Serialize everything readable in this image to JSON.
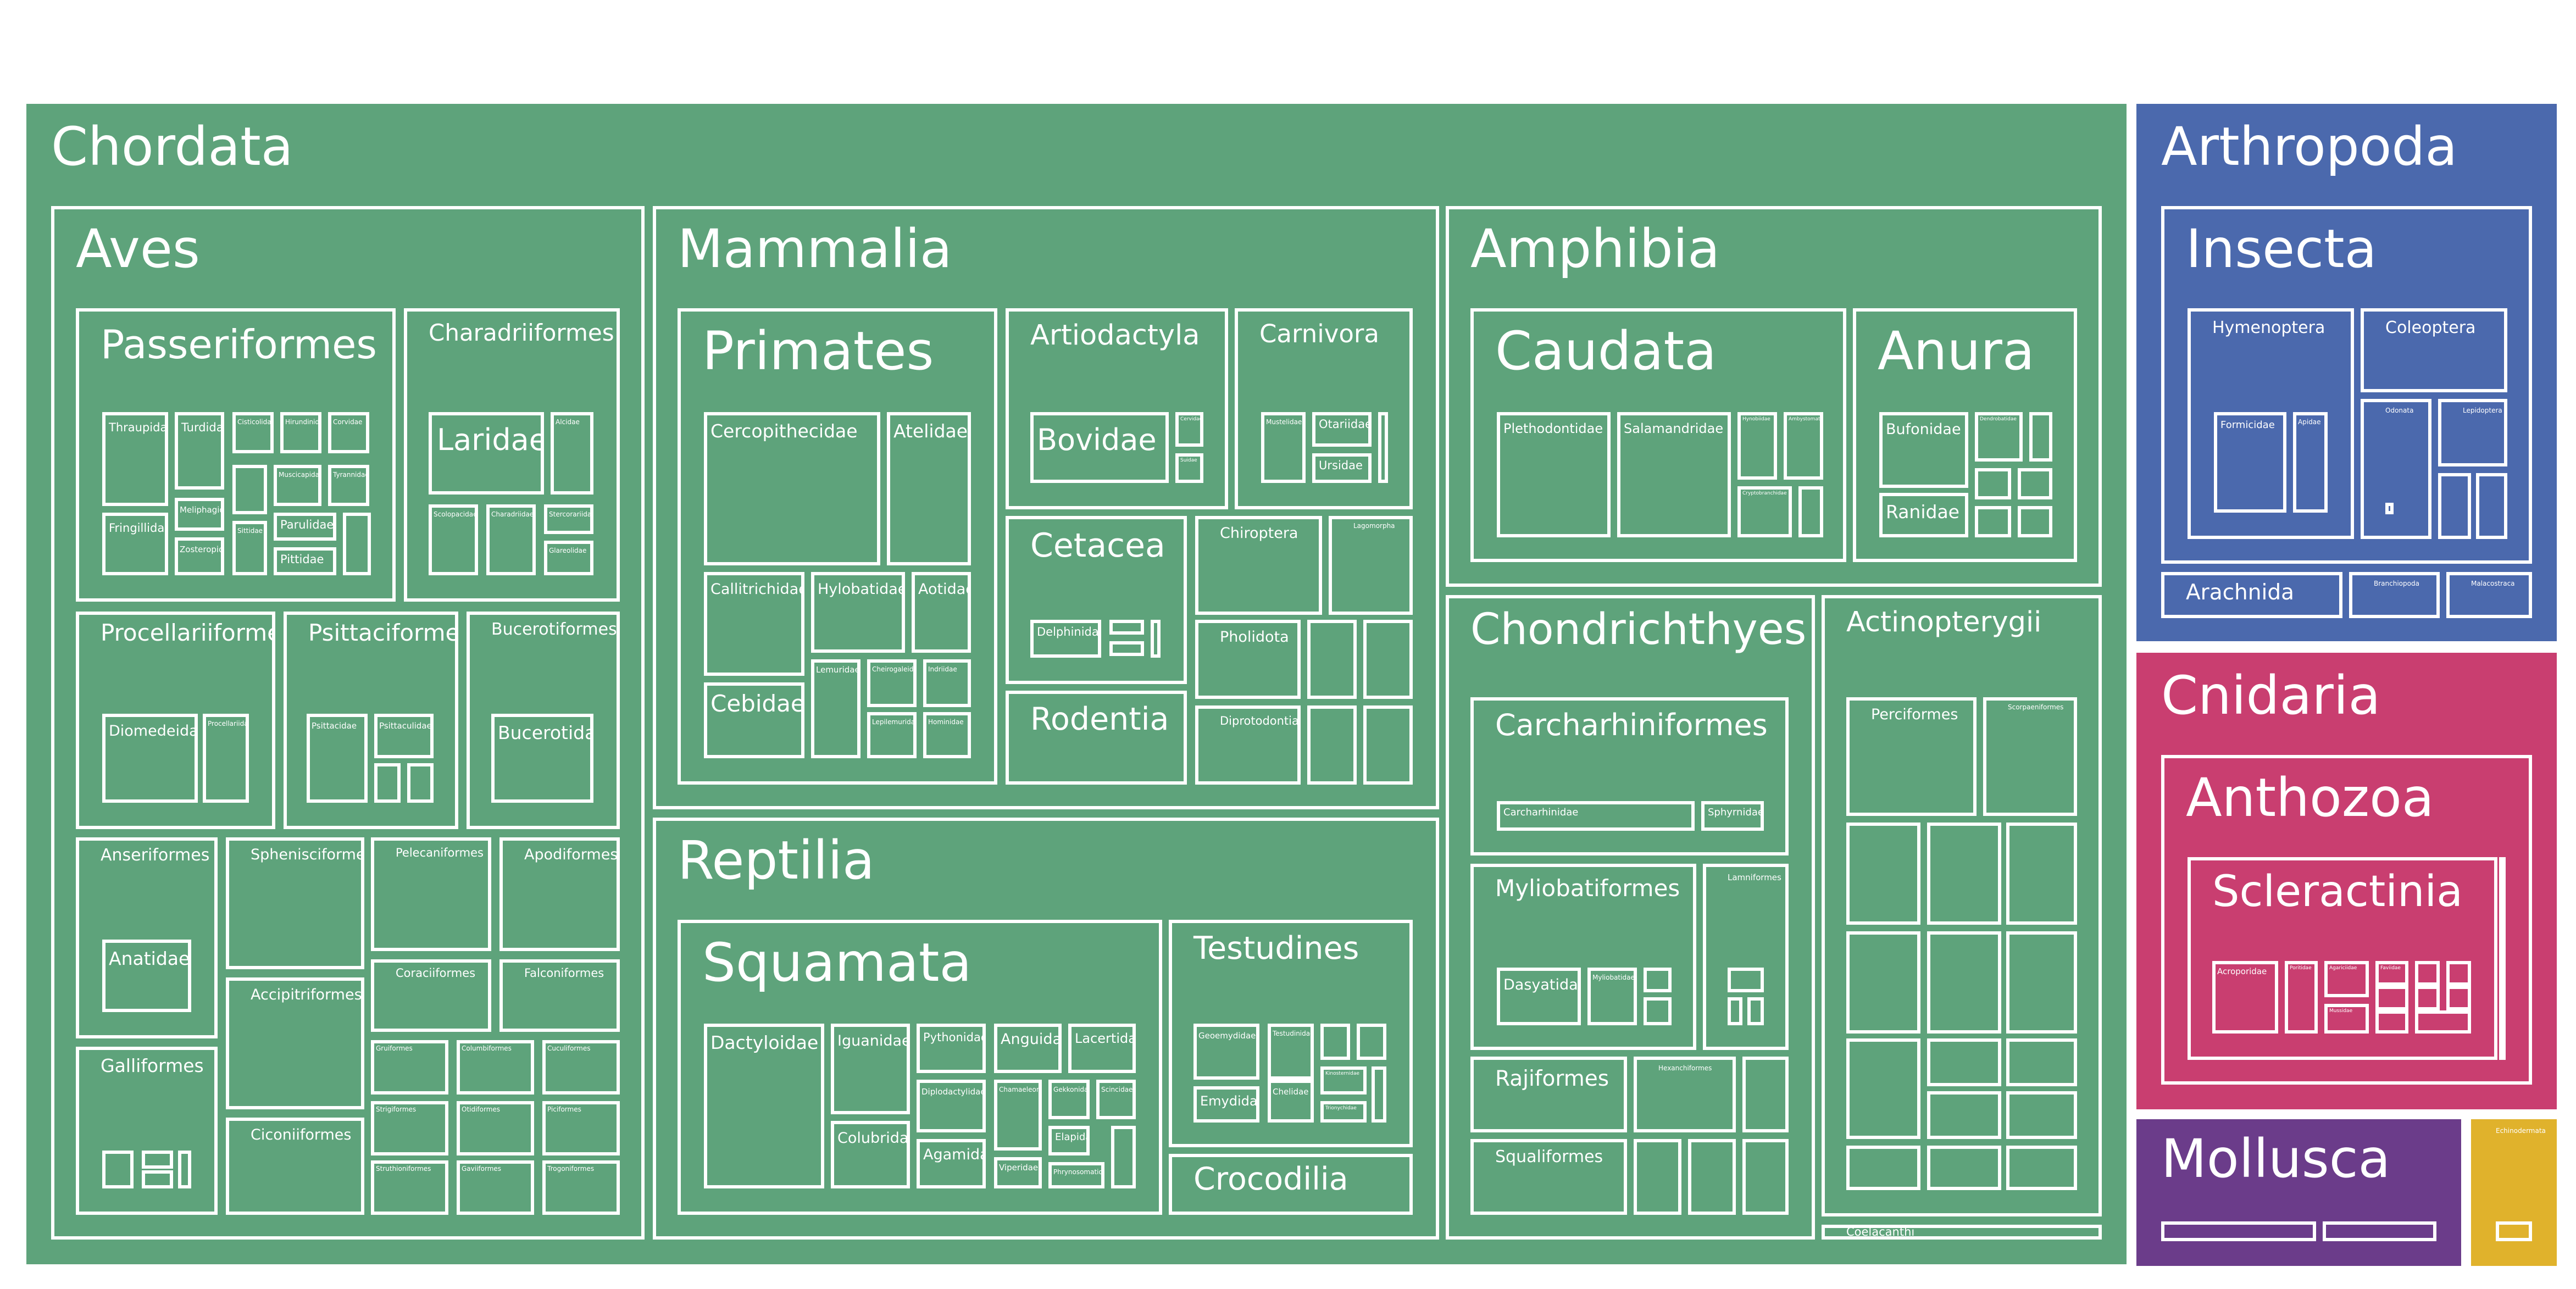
{
  "chart_data": {
    "type": "treemap",
    "title": "",
    "colors": {
      "Chordata": "#5ea37b",
      "Arthropoda": "#4b69ad",
      "Cnidaria": "#c93e70",
      "Mollusca": "#6b3c8a",
      "Other": "#e0b22c"
    },
    "nodes": [
      {
        "id": "chordata",
        "label": "Chordata",
        "level": 0
      },
      {
        "id": "aves",
        "label": "Aves",
        "level": 1
      },
      {
        "id": "passeriformes",
        "label": "Passeriformes",
        "level": 2
      },
      {
        "id": "thraupidae",
        "label": "Thraupidae",
        "level": 3
      },
      {
        "id": "turdidae",
        "label": "Turdidae",
        "level": 3
      },
      {
        "id": "pass_c",
        "label": "Cisticolidae",
        "level": 3
      },
      {
        "id": "pass_d",
        "label": "Hirundinidae",
        "level": 3
      },
      {
        "id": "pass_e",
        "label": "Corvidae",
        "level": 3
      },
      {
        "id": "pass_f",
        "label": "",
        "level": 3
      },
      {
        "id": "pass_g",
        "label": "Muscicapidae",
        "level": 3
      },
      {
        "id": "pass_h",
        "label": "Tyrannidae",
        "level": 3
      },
      {
        "id": "fringillidae",
        "label": "Fringillidae",
        "level": 3
      },
      {
        "id": "meliphagidae",
        "label": "Meliphagidae",
        "level": 3
      },
      {
        "id": "pass_i",
        "label": "Sittidae",
        "level": 3
      },
      {
        "id": "parulidae",
        "label": "Parulidae",
        "level": 3
      },
      {
        "id": "zosteropidae",
        "label": "Zosteropidae",
        "level": 3
      },
      {
        "id": "pittidae",
        "label": "Pittidae",
        "level": 3
      },
      {
        "id": "pass_j",
        "label": "",
        "level": 3
      },
      {
        "id": "charadriiformes",
        "label": "Charadriiformes",
        "level": 2
      },
      {
        "id": "laridae",
        "label": "Laridae",
        "level": 3
      },
      {
        "id": "scolopacidae",
        "label": "Scolopacidae",
        "level": 3
      },
      {
        "id": "charadriidae",
        "label": "Charadriidae",
        "level": 3
      },
      {
        "id": "alcidae",
        "label": "Alcidae",
        "level": 3
      },
      {
        "id": "char_d",
        "label": "Stercorariidae",
        "level": 3
      },
      {
        "id": "glareolidae",
        "label": "Glareolidae",
        "level": 3
      },
      {
        "id": "procellariiformes",
        "label": "Procellariiformes",
        "level": 2
      },
      {
        "id": "diomedeidae",
        "label": "Diomedeidae",
        "level": 3
      },
      {
        "id": "procellariidae",
        "label": "Procellariidae",
        "level": 3
      },
      {
        "id": "psittaciformes",
        "label": "Psittaciformes",
        "level": 2
      },
      {
        "id": "psittacidae",
        "label": "Psittacidae",
        "level": 3
      },
      {
        "id": "psittaculidae",
        "label": "Psittaculidae",
        "level": 3
      },
      {
        "id": "psit_c",
        "label": "",
        "level": 3
      },
      {
        "id": "psit_d",
        "label": "",
        "level": 3
      },
      {
        "id": "bucerotiformes",
        "label": "Bucerotiformes",
        "level": 2
      },
      {
        "id": "bucerotidae",
        "label": "Bucerotidae",
        "level": 3
      },
      {
        "id": "anseriformes",
        "label": "Anseriformes",
        "level": 2
      },
      {
        "id": "anatidae",
        "label": "Anatidae",
        "level": 3
      },
      {
        "id": "galliformes",
        "label": "Galliformes",
        "level": 2
      },
      {
        "id": "gall_a",
        "label": "",
        "level": 3
      },
      {
        "id": "gall_b",
        "label": "",
        "level": 3
      },
      {
        "id": "gall_c",
        "label": "",
        "level": 3
      },
      {
        "id": "gall_d",
        "label": "",
        "level": 3
      },
      {
        "id": "sphenisciformes",
        "label": "Sphenisciformes",
        "level": 2
      },
      {
        "id": "accipitriformes",
        "label": "Accipitriformes",
        "level": 2
      },
      {
        "id": "ciconiiformes",
        "label": "Ciconiiformes",
        "level": 2
      },
      {
        "id": "pelecaniformes",
        "label": "Pelecaniformes",
        "level": 2
      },
      {
        "id": "apodiformes",
        "label": "Apodiformes",
        "level": 2
      },
      {
        "id": "coraciiformes",
        "label": "Coraciiformes",
        "level": 2
      },
      {
        "id": "falconiformes",
        "label": "Falconiformes",
        "level": 2
      },
      {
        "id": "aves_s1",
        "label": "Gruiformes",
        "level": 2
      },
      {
        "id": "aves_s2",
        "label": "Columbiformes",
        "level": 2
      },
      {
        "id": "aves_s3",
        "label": "Cuculiformes",
        "level": 2
      },
      {
        "id": "aves_s4",
        "label": "Strigiformes",
        "level": 2
      },
      {
        "id": "aves_s5",
        "label": "Otidiformes",
        "level": 2
      },
      {
        "id": "aves_s6",
        "label": "Piciformes",
        "level": 2
      },
      {
        "id": "aves_s7",
        "label": "Struthioniformes",
        "level": 2
      },
      {
        "id": "aves_s8",
        "label": "Gaviiformes",
        "level": 2
      },
      {
        "id": "aves_s9",
        "label": "Trogoniformes",
        "level": 2
      },
      {
        "id": "mammalia",
        "label": "Mammalia",
        "level": 1
      },
      {
        "id": "primates",
        "label": "Primates",
        "level": 2
      },
      {
        "id": "cercopithecidae",
        "label": "Cercopithecidae",
        "level": 3
      },
      {
        "id": "atelidae",
        "label": "Atelidae",
        "level": 3
      },
      {
        "id": "callitrichidae",
        "label": "Callitrichidae",
        "level": 3
      },
      {
        "id": "hylobatidae",
        "label": "Hylobatidae",
        "level": 3
      },
      {
        "id": "aotidae",
        "label": "Aotidae",
        "level": 3
      },
      {
        "id": "cebidae",
        "label": "Cebidae",
        "level": 3
      },
      {
        "id": "lemuridae",
        "label": "Lemuridae",
        "level": 3
      },
      {
        "id": "cheirogaleidae",
        "label": "Cheirogaleidae",
        "level": 3
      },
      {
        "id": "indriidae",
        "label": "Indriidae",
        "level": 3
      },
      {
        "id": "lepilemuridae",
        "label": "Lepilemuridae",
        "level": 3
      },
      {
        "id": "hominidae",
        "label": "Hominidae",
        "level": 3
      },
      {
        "id": "artiodactyla",
        "label": "Artiodactyla",
        "level": 2
      },
      {
        "id": "bovidae",
        "label": "Bovidae",
        "level": 3
      },
      {
        "id": "cervidae",
        "label": "Cervidae",
        "level": 3
      },
      {
        "id": "suidae",
        "label": "Suidae",
        "level": 3
      },
      {
        "id": "carnivora",
        "label": "Carnivora",
        "level": 2
      },
      {
        "id": "mustelidae",
        "label": "Mustelidae",
        "level": 3
      },
      {
        "id": "otariidae",
        "label": "Otariidae",
        "level": 3
      },
      {
        "id": "ursidae",
        "label": "Ursidae",
        "level": 3
      },
      {
        "id": "carn_d",
        "label": "",
        "level": 3
      },
      {
        "id": "cetacea",
        "label": "Cetacea",
        "level": 2
      },
      {
        "id": "delphinidae",
        "label": "Delphinidae",
        "level": 3
      },
      {
        "id": "cet_b",
        "label": "",
        "level": 3
      },
      {
        "id": "cet_c",
        "label": "",
        "level": 3
      },
      {
        "id": "cet_d",
        "label": "",
        "level": 3
      },
      {
        "id": "chiroptera",
        "label": "Chiroptera",
        "level": 2
      },
      {
        "id": "lagomorpha",
        "label": "Lagomorpha",
        "level": 2
      },
      {
        "id": "pholidota",
        "label": "Pholidota",
        "level": 2
      },
      {
        "id": "mam_s1",
        "label": "",
        "level": 2
      },
      {
        "id": "mam_s2",
        "label": "",
        "level": 2
      },
      {
        "id": "rodentia",
        "label": "Rodentia",
        "level": 2
      },
      {
        "id": "diprotodontia",
        "label": "Diprotodontia",
        "level": 2
      },
      {
        "id": "mam_s3",
        "label": "",
        "level": 2
      },
      {
        "id": "mam_s4",
        "label": "",
        "level": 2
      },
      {
        "id": "reptilia",
        "label": "Reptilia",
        "level": 1
      },
      {
        "id": "squamata",
        "label": "Squamata",
        "level": 2
      },
      {
        "id": "dactyloidae",
        "label": "Dactyloidae",
        "level": 3
      },
      {
        "id": "iguanidae",
        "label": "Iguanidae",
        "level": 3
      },
      {
        "id": "pythonidae",
        "label": "Pythonidae",
        "level": 3
      },
      {
        "id": "anguidae",
        "label": "Anguidae",
        "level": 3
      },
      {
        "id": "lacertidae",
        "label": "Lacertidae",
        "level": 3
      },
      {
        "id": "colubridae",
        "label": "Colubridae",
        "level": 3
      },
      {
        "id": "diplodactylidae",
        "label": "Diplodactylidae",
        "level": 3
      },
      {
        "id": "squ_a",
        "label": "Chamaeleonidae",
        "level": 3
      },
      {
        "id": "squ_b",
        "label": "Gekkonidae",
        "level": 3
      },
      {
        "id": "squ_c",
        "label": "Scincidae",
        "level": 3
      },
      {
        "id": "agamidae",
        "label": "Agamidae",
        "level": 3
      },
      {
        "id": "elapidae",
        "label": "Elapidae",
        "level": 3
      },
      {
        "id": "viperidae",
        "label": "Viperidae",
        "level": 3
      },
      {
        "id": "squ_d",
        "label": "Phrynosomatidae",
        "level": 3
      },
      {
        "id": "squ_e",
        "label": "",
        "level": 3
      },
      {
        "id": "testudines",
        "label": "Testudines",
        "level": 2
      },
      {
        "id": "geoemydidae",
        "label": "Geoemydidae",
        "level": 3
      },
      {
        "id": "testudinidae",
        "label": "Testudinidae",
        "level": 3
      },
      {
        "id": "emydidae",
        "label": "Emydidae",
        "level": 3
      },
      {
        "id": "chelidae",
        "label": "Chelidae",
        "level": 3
      },
      {
        "id": "tes_a",
        "label": "",
        "level": 3
      },
      {
        "id": "tes_b",
        "label": "",
        "level": 3
      },
      {
        "id": "tes_c",
        "label": "Kinosternidae",
        "level": 3
      },
      {
        "id": "tes_d",
        "label": "Trionychidae",
        "level": 3
      },
      {
        "id": "tes_e",
        "label": "",
        "level": 3
      },
      {
        "id": "crocodilia",
        "label": "Crocodilia",
        "level": 2
      },
      {
        "id": "amphibia",
        "label": "Amphibia",
        "level": 1
      },
      {
        "id": "caudata",
        "label": "Caudata",
        "level": 2
      },
      {
        "id": "plethodontidae",
        "label": "Plethodontidae",
        "level": 3
      },
      {
        "id": "salamandridae",
        "label": "Salamandridae",
        "level": 3
      },
      {
        "id": "cau_a",
        "label": "Hynobiidae",
        "level": 3
      },
      {
        "id": "cau_b",
        "label": "Ambystomatidae",
        "level": 3
      },
      {
        "id": "cau_c",
        "label": "Cryptobranchidae",
        "level": 3
      },
      {
        "id": "cau_d",
        "label": "",
        "level": 3
      },
      {
        "id": "anura",
        "label": "Anura",
        "level": 2
      },
      {
        "id": "bufonidae",
        "label": "Bufonidae",
        "level": 3
      },
      {
        "id": "ranidae",
        "label": "Ranidae",
        "level": 3
      },
      {
        "id": "anu_a",
        "label": "Dendrobatidae",
        "level": 3
      },
      {
        "id": "anu_b",
        "label": "",
        "level": 3
      },
      {
        "id": "anu_c",
        "label": "",
        "level": 3
      },
      {
        "id": "anu_d",
        "label": "",
        "level": 3
      },
      {
        "id": "anu_e",
        "label": "",
        "level": 3
      },
      {
        "id": "anu_f",
        "label": "",
        "level": 3
      },
      {
        "id": "chondrichthyes",
        "label": "Chondrichthyes",
        "level": 1
      },
      {
        "id": "carcharhiniformes",
        "label": "Carcharhiniformes",
        "level": 2
      },
      {
        "id": "carcharhinidae",
        "label": "Carcharhinidae",
        "level": 3
      },
      {
        "id": "sphyrnidae",
        "label": "Sphyrnidae",
        "level": 3
      },
      {
        "id": "myliobatiformes",
        "label": "Myliobatiformes",
        "level": 2
      },
      {
        "id": "dasyatidae",
        "label": "Dasyatidae",
        "level": 3
      },
      {
        "id": "myliobatidae",
        "label": "Myliobatidae",
        "level": 3
      },
      {
        "id": "myl_a",
        "label": "",
        "level": 3
      },
      {
        "id": "myl_b",
        "label": "",
        "level": 3
      },
      {
        "id": "lamniformes",
        "label": "Lamniformes",
        "level": 2
      },
      {
        "id": "lam_a",
        "label": "",
        "level": 3
      },
      {
        "id": "lam_b",
        "label": "",
        "level": 3
      },
      {
        "id": "lam_c",
        "label": "",
        "level": 3
      },
      {
        "id": "rajiformes",
        "label": "Rajiformes",
        "level": 2
      },
      {
        "id": "hexanchiformes",
        "label": "Hexanchiformes",
        "level": 2
      },
      {
        "id": "chon_s1",
        "label": "",
        "level": 2
      },
      {
        "id": "squaliformes",
        "label": "Squaliformes",
        "level": 2
      },
      {
        "id": "chon_s2",
        "label": "",
        "level": 2
      },
      {
        "id": "chon_s3",
        "label": "",
        "level": 2
      },
      {
        "id": "chon_s4",
        "label": "",
        "level": 2
      },
      {
        "id": "actinopterygii",
        "label": "Actinopterygii",
        "level": 1
      },
      {
        "id": "perciformes",
        "label": "Perciformes",
        "level": 2
      },
      {
        "id": "act_b",
        "label": "Scorpaeniformes",
        "level": 2
      },
      {
        "id": "act_s1",
        "label": "",
        "level": 2
      },
      {
        "id": "act_s2",
        "label": "",
        "level": 2
      },
      {
        "id": "act_s3",
        "label": "",
        "level": 2
      },
      {
        "id": "act_s4",
        "label": "",
        "level": 2
      },
      {
        "id": "act_s5",
        "label": "",
        "level": 2
      },
      {
        "id": "act_s6",
        "label": "",
        "level": 2
      },
      {
        "id": "act_s7",
        "label": "",
        "level": 2
      },
      {
        "id": "act_s8",
        "label": "",
        "level": 2
      },
      {
        "id": "act_s9",
        "label": "",
        "level": 2
      },
      {
        "id": "act_s10",
        "label": "",
        "level": 2
      },
      {
        "id": "act_s11",
        "label": "",
        "level": 2
      },
      {
        "id": "act_s12",
        "label": "",
        "level": 2
      },
      {
        "id": "act_s13",
        "label": "",
        "level": 2
      },
      {
        "id": "act_s14",
        "label": "",
        "level": 2
      },
      {
        "id": "coelacanthi",
        "label": "Coelacanthi",
        "level": 1
      },
      {
        "id": "arthropoda",
        "label": "Arthropoda",
        "level": 0
      },
      {
        "id": "insecta",
        "label": "Insecta",
        "level": 1
      },
      {
        "id": "hymenoptera",
        "label": "Hymenoptera",
        "level": 2
      },
      {
        "id": "formicidae",
        "label": "Formicidae",
        "level": 3
      },
      {
        "id": "apidae",
        "label": "Apidae",
        "level": 3
      },
      {
        "id": "coleoptera",
        "label": "Coleoptera",
        "level": 2
      },
      {
        "id": "ins_a",
        "label": "Odonata",
        "level": 2
      },
      {
        "id": "ins_b",
        "label": "Lepidoptera",
        "level": 2
      },
      {
        "id": "ins_c",
        "label": "",
        "level": 2
      },
      {
        "id": "ins_d",
        "label": "",
        "level": 2
      },
      {
        "id": "ins_e",
        "label": "",
        "level": 3
      },
      {
        "id": "arachnida",
        "label": "Arachnida",
        "level": 1
      },
      {
        "id": "branchiopoda",
        "label": "Branchiopoda",
        "level": 1
      },
      {
        "id": "malacostraca",
        "label": "Malacostraca",
        "level": 1
      },
      {
        "id": "cnidaria",
        "label": "Cnidaria",
        "level": 0
      },
      {
        "id": "anthozoa",
        "label": "Anthozoa",
        "level": 1
      },
      {
        "id": "scleractinia",
        "label": "Scleractinia",
        "level": 2
      },
      {
        "id": "acroporidae",
        "label": "Acroporidae",
        "level": 3
      },
      {
        "id": "scl_a",
        "label": "Poritidae",
        "level": 3
      },
      {
        "id": "scl_b",
        "label": "Agariciidae",
        "level": 3
      },
      {
        "id": "scl_c",
        "label": "Faviidae",
        "level": 3
      },
      {
        "id": "scl_d",
        "label": "Mussidae",
        "level": 3
      },
      {
        "id": "scl_e",
        "label": "",
        "level": 3
      },
      {
        "id": "scl_f",
        "label": "",
        "level": 3
      },
      {
        "id": "scl_g",
        "label": "",
        "level": 3
      },
      {
        "id": "scl_h",
        "label": "",
        "level": 3
      },
      {
        "id": "scl_i",
        "label": "",
        "level": 3
      },
      {
        "id": "scl_j",
        "label": "",
        "level": 3
      },
      {
        "id": "scl_k",
        "label": "",
        "level": 3
      },
      {
        "id": "antho_s",
        "label": "",
        "level": 2
      },
      {
        "id": "mollusca",
        "label": "Mollusca",
        "level": 0
      },
      {
        "id": "mol_a",
        "label": "",
        "level": 1
      },
      {
        "id": "mol_b",
        "label": "",
        "level": 1
      },
      {
        "id": "echinodermata",
        "label": "Echinodermata",
        "level": 0
      },
      {
        "id": "ech_a",
        "label": "",
        "level": 1
      }
    ]
  }
}
